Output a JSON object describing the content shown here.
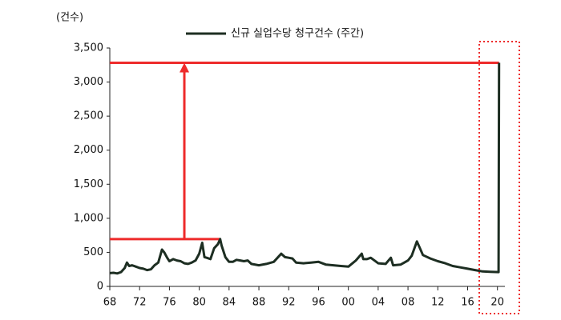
{
  "chart_data": {
    "type": "line",
    "y_label": "(건수)",
    "series": [
      {
        "name": "신규 실업수당 청구건수 (주간)",
        "color": "#1d2e22",
        "x": [
          1968,
          1968.5,
          1969,
          1969.5,
          1970,
          1970.3,
          1970.6,
          1971,
          1971.5,
          1972,
          1972.5,
          1973,
          1973.5,
          1974,
          1974.5,
          1975,
          1975.3,
          1975.7,
          1976,
          1976.5,
          1977,
          1977.5,
          1978,
          1978.5,
          1979,
          1979.5,
          1980,
          1980.4,
          1980.7,
          1981,
          1981.5,
          1982,
          1982.5,
          1982.8,
          1983,
          1983.5,
          1984,
          1984.5,
          1985,
          1985.5,
          1986,
          1986.5,
          1987,
          1988,
          1989,
          1990,
          1990.5,
          1991,
          1991.5,
          1992,
          1992.5,
          1993,
          1994,
          1995,
          1996,
          1997,
          1998,
          1999,
          2000,
          2001,
          2001.8,
          2002,
          2002.5,
          2003,
          2003.5,
          2004,
          2005,
          2005.7,
          2006,
          2007,
          2008,
          2008.5,
          2009.2,
          2009.6,
          2010,
          2011,
          2012,
          2013,
          2014,
          2015,
          2016,
          2017,
          2018,
          2019,
          2020.15,
          2020.22
        ],
        "values": [
          195,
          200,
          190,
          210,
          270,
          350,
          300,
          310,
          290,
          270,
          260,
          240,
          250,
          310,
          350,
          540,
          500,
          420,
          370,
          400,
          380,
          370,
          340,
          330,
          350,
          380,
          480,
          640,
          430,
          420,
          400,
          560,
          620,
          695,
          600,
          430,
          360,
          360,
          390,
          380,
          370,
          380,
          330,
          310,
          330,
          360,
          420,
          480,
          430,
          420,
          410,
          350,
          340,
          350,
          360,
          320,
          310,
          300,
          290,
          380,
          480,
          400,
          400,
          420,
          380,
          340,
          330,
          420,
          310,
          320,
          380,
          450,
          660,
          560,
          460,
          410,
          370,
          340,
          300,
          280,
          260,
          240,
          220,
          215,
          210,
          3283
        ]
      }
    ],
    "xlim": [
      1968,
      2021
    ],
    "xticks": [
      {
        "value": 1968,
        "label": "68"
      },
      {
        "value": 1972,
        "label": "72"
      },
      {
        "value": 1976,
        "label": "76"
      },
      {
        "value": 1980,
        "label": "80"
      },
      {
        "value": 1984,
        "label": "84"
      },
      {
        "value": 1988,
        "label": "88"
      },
      {
        "value": 1992,
        "label": "92"
      },
      {
        "value": 1996,
        "label": "96"
      },
      {
        "value": 2000,
        "label": "00"
      },
      {
        "value": 2004,
        "label": "04"
      },
      {
        "value": 2008,
        "label": "08"
      },
      {
        "value": 2012,
        "label": "12"
      },
      {
        "value": 2016,
        "label": "16"
      },
      {
        "value": 2020,
        "label": "20"
      }
    ],
    "ylim": [
      0,
      3500
    ],
    "yticks": [
      0,
      500,
      {
        "value": 1000,
        "label": "1,000"
      },
      {
        "value": 1500,
        "label": "1,500"
      },
      {
        "value": 2000,
        "label": "2,000"
      },
      {
        "value": 2500,
        "label": "2,500"
      },
      {
        "value": 3000,
        "label": "3,000"
      },
      {
        "value": 3500,
        "label": "3,500"
      }
    ],
    "reference_lines": [
      {
        "value": 695,
        "x": [
          1968,
          1982.8
        ]
      },
      {
        "value": 3283,
        "x": [
          1968,
          2020.22
        ]
      }
    ],
    "arrow": {
      "x": 1978,
      "from": 695,
      "to": 3283
    },
    "annotation_color": "#ee2b2b"
  }
}
